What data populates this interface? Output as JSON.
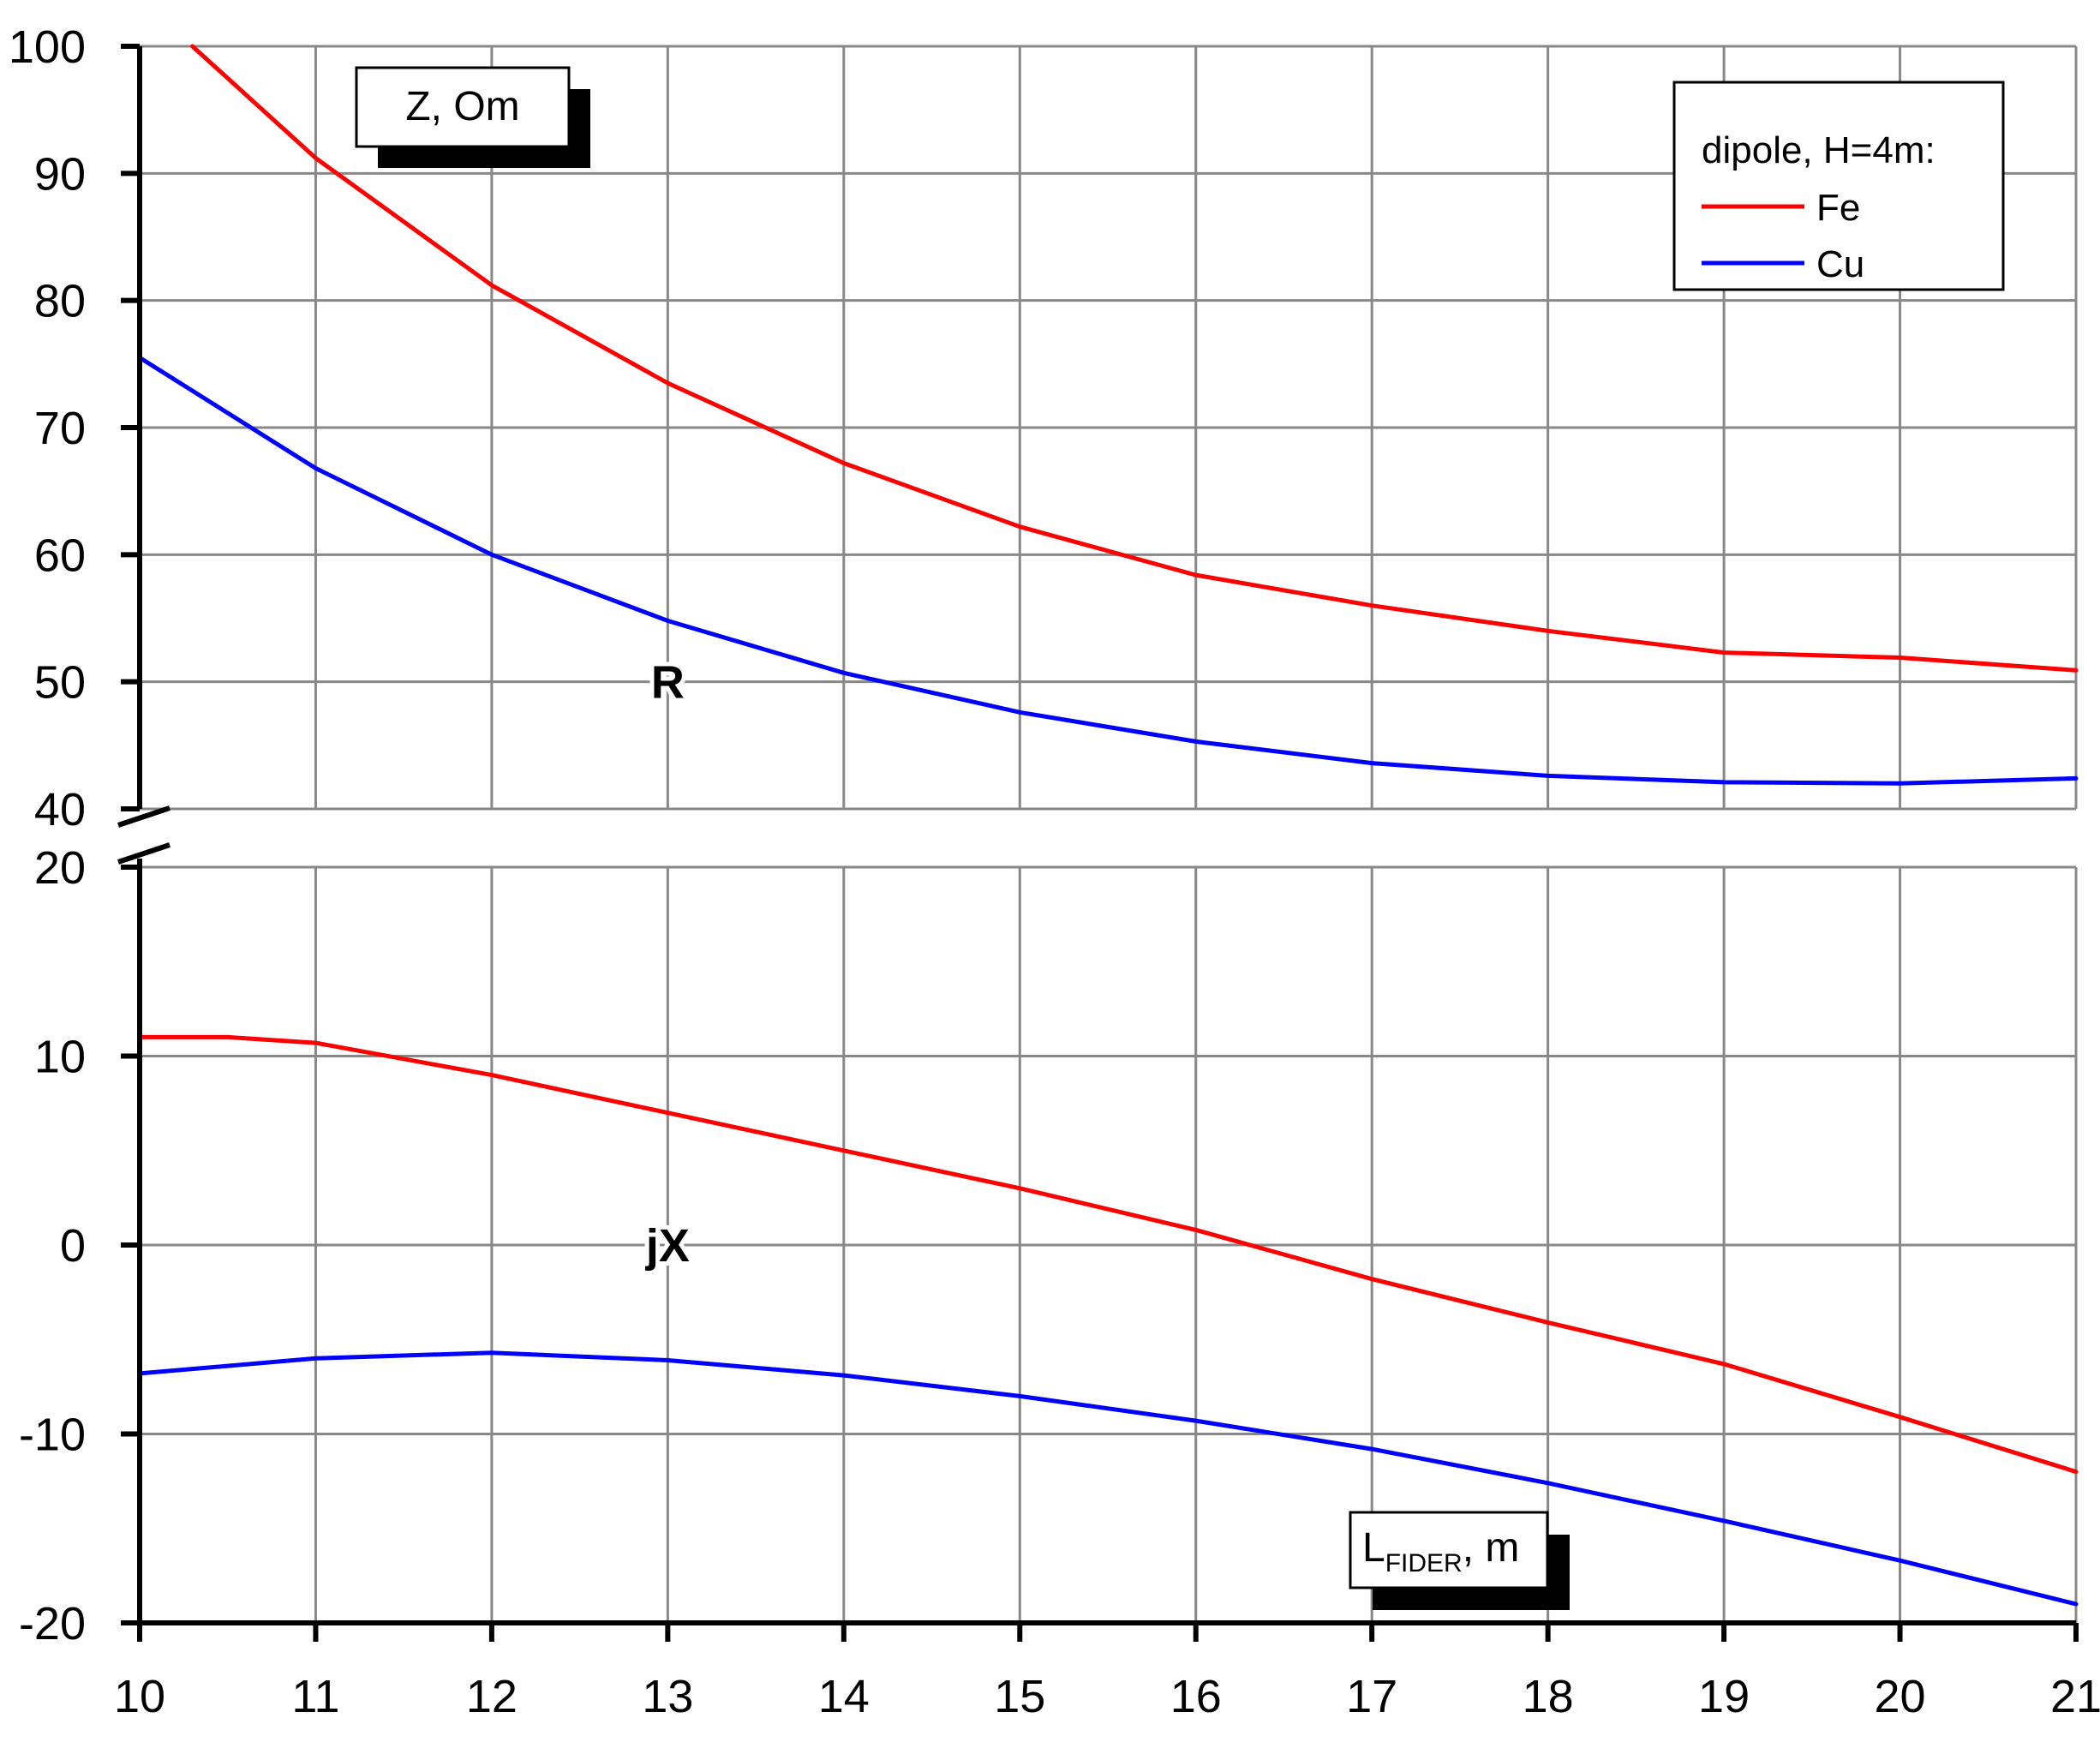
{
  "chart_data": {
    "type": "line",
    "xlim": [
      10,
      21
    ],
    "x_ticks": [
      "10",
      "11",
      "12",
      "13",
      "14",
      "15",
      "16",
      "17",
      "18",
      "19",
      "20",
      "21"
    ],
    "grid": true,
    "xlabel": {
      "main": "L",
      "sub": "FIDER",
      "rest": ", m"
    },
    "ylabel": "Z, Om",
    "upper_panel": {
      "ylim": [
        40,
        100
      ],
      "y_ticks": [
        "40",
        "50",
        "60",
        "70",
        "80",
        "90",
        "100"
      ],
      "annotation": "R"
    },
    "lower_panel": {
      "ylim": [
        -20,
        20
      ],
      "y_ticks": [
        "-20",
        "-10",
        "0",
        "10",
        "20"
      ],
      "annotation": "jX"
    },
    "legend": {
      "title": "dipole, H=4m:",
      "placement": "top-right",
      "entries": [
        {
          "name": "Fe",
          "color": "#ff0000"
        },
        {
          "name": "Cu",
          "color": "#0000ff"
        }
      ]
    },
    "series": [
      {
        "name": "Fe",
        "panel": "upper",
        "color": "#ff0000",
        "x": [
          10.3,
          11,
          12,
          13,
          14,
          15,
          16,
          17,
          18,
          19,
          20,
          21
        ],
        "y": [
          100,
          91.2,
          81.2,
          73.5,
          67.2,
          62.2,
          58.4,
          56,
          54,
          52.3,
          51.9,
          50.9
        ]
      },
      {
        "name": "Cu",
        "panel": "upper",
        "color": "#0000ff",
        "x": [
          10,
          11,
          12,
          13,
          14,
          15,
          16,
          17,
          18,
          19,
          20,
          21
        ],
        "y": [
          75.5,
          66.8,
          60,
          54.8,
          50.7,
          47.6,
          45.3,
          43.6,
          42.6,
          42.1,
          42,
          42.4
        ]
      },
      {
        "name": "Fe",
        "panel": "lower",
        "color": "#ff0000",
        "x": [
          10,
          10.5,
          11,
          12,
          13,
          14,
          15,
          16,
          17,
          18,
          19,
          20,
          21
        ],
        "y": [
          11,
          11,
          10.7,
          9,
          7,
          5,
          3,
          0.8,
          -1.8,
          -4.1,
          -6.3,
          -9.1,
          -12
        ]
      },
      {
        "name": "Cu",
        "panel": "lower",
        "color": "#0000ff",
        "x": [
          10,
          11,
          12,
          13,
          14,
          15,
          16,
          17,
          18,
          19,
          20,
          21
        ],
        "y": [
          -6.8,
          -6,
          -5.7,
          -6.1,
          -6.9,
          -8,
          -9.3,
          -10.8,
          -12.6,
          -14.6,
          -16.7,
          -19
        ]
      }
    ]
  }
}
